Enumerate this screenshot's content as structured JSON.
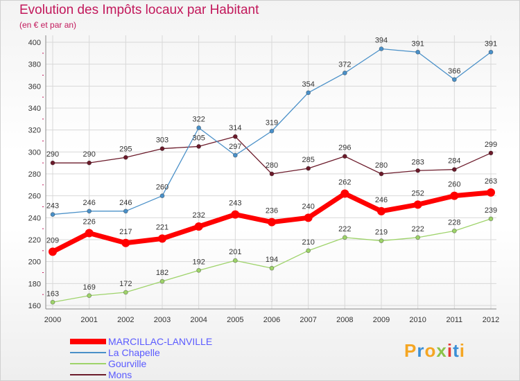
{
  "chart_data": {
    "type": "line",
    "title": "Evolution des Impôts locaux par Habitant",
    "subtitle": "(en € et par an)",
    "categories": [
      "2000",
      "2001",
      "2002",
      "2003",
      "2004",
      "2005",
      "2006",
      "2007",
      "2008",
      "2009",
      "2010",
      "2011",
      "2012"
    ],
    "ylim": [
      160,
      400
    ],
    "yticks": [
      160,
      180,
      200,
      220,
      240,
      260,
      280,
      300,
      320,
      340,
      360,
      380,
      400
    ],
    "grid": true,
    "legend_position": "bottom-left",
    "series": [
      {
        "name": "Mons",
        "color": "#6b1a2a",
        "values": [
          290,
          290,
          295,
          303,
          305,
          314,
          280,
          285,
          296,
          280,
          283,
          284,
          299
        ]
      },
      {
        "name": "La Chapelle",
        "color": "#4a90c8",
        "values": [
          243,
          246,
          246,
          260,
          322,
          297,
          319,
          354,
          372,
          394,
          391,
          366,
          391
        ]
      },
      {
        "name": "Gourville",
        "color": "#9ed36a",
        "values": [
          163,
          169,
          172,
          182,
          192,
          201,
          194,
          210,
          222,
          219,
          222,
          228,
          239
        ]
      },
      {
        "name": "MARCILLAC-LANVILLE",
        "color": "#ff0000",
        "values": [
          209,
          226,
          217,
          221,
          232,
          243,
          236,
          240,
          262,
          246,
          252,
          260,
          263
        ]
      }
    ],
    "legend": [
      "MARCILLAC-LANVILLE",
      "La Chapelle",
      "Gourville",
      "Mons"
    ]
  },
  "logo": {
    "letters": [
      "P",
      "r",
      "o",
      "x",
      "i",
      "t",
      "i"
    ],
    "colors": [
      "#f5a623",
      "#3b8fd6",
      "#f5a623",
      "#8bc34a",
      "#e53935",
      "#3b8fd6",
      "#f5a623"
    ]
  }
}
